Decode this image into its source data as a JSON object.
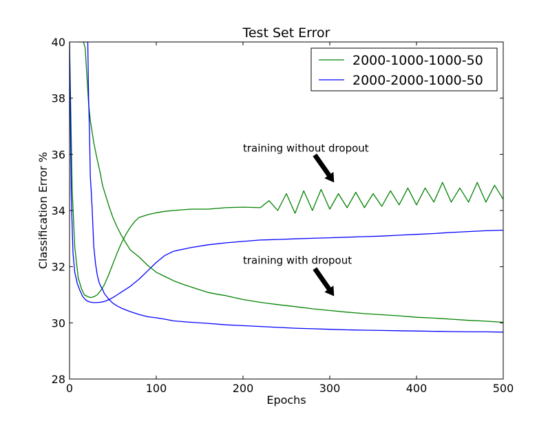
{
  "chart_data": {
    "type": "line",
    "title": "Test Set Error",
    "xlabel": "Epochs",
    "ylabel": "Classification Error %",
    "xlim": [
      0,
      500
    ],
    "ylim": [
      28,
      40
    ],
    "xticks": [
      0,
      100,
      200,
      300,
      400,
      500
    ],
    "yticks": [
      28,
      30,
      32,
      34,
      36,
      38,
      40
    ],
    "grid": false,
    "legend_position": "top-right",
    "series": [
      {
        "name": "2000-1000-1000-50",
        "color": "#008000",
        "role": "without dropout",
        "x": [
          0,
          3,
          6,
          10,
          14,
          17,
          20,
          24,
          28,
          32,
          36,
          40,
          45,
          50,
          55,
          60,
          65,
          70,
          75,
          80,
          90,
          100,
          110,
          120,
          140,
          160,
          180,
          200,
          220,
          230,
          240,
          250,
          260,
          270,
          280,
          290,
          300,
          310,
          320,
          330,
          340,
          350,
          360,
          370,
          380,
          390,
          400,
          410,
          420,
          430,
          440,
          450,
          460,
          470,
          480,
          490,
          500
        ],
        "values": [
          40,
          34.8,
          32.7,
          31.6,
          31.2,
          31.0,
          30.95,
          30.9,
          30.93,
          31.0,
          31.15,
          31.35,
          31.7,
          32.1,
          32.5,
          32.85,
          33.15,
          33.4,
          33.6,
          33.75,
          33.85,
          33.92,
          33.97,
          34.0,
          34.05,
          34.05,
          34.1,
          34.12,
          34.1,
          34.35,
          34.0,
          34.6,
          33.9,
          34.7,
          34.0,
          34.75,
          34.05,
          34.6,
          34.1,
          34.65,
          34.1,
          34.6,
          34.15,
          34.7,
          34.2,
          34.8,
          34.2,
          34.8,
          34.3,
          35.0,
          34.3,
          34.8,
          34.3,
          35.0,
          34.3,
          34.9,
          34.4
        ]
      },
      {
        "name": "2000-2000-1000-50",
        "color": "#0000ff",
        "role": "without dropout",
        "x": [
          0,
          2,
          4,
          6,
          9,
          12,
          15,
          18,
          21,
          24,
          27,
          30,
          35,
          40,
          45,
          50,
          55,
          60,
          70,
          80,
          90,
          100,
          110,
          120,
          140,
          160,
          180,
          200,
          220,
          240,
          260,
          280,
          300,
          320,
          340,
          360,
          380,
          400,
          420,
          440,
          460,
          480,
          500
        ],
        "values": [
          40,
          34.5,
          32.5,
          31.8,
          31.4,
          31.15,
          30.95,
          30.83,
          30.77,
          30.74,
          30.72,
          30.72,
          30.73,
          30.76,
          30.82,
          30.9,
          31.0,
          31.1,
          31.3,
          31.55,
          31.85,
          32.15,
          32.4,
          32.55,
          32.68,
          32.78,
          32.85,
          32.9,
          32.95,
          32.97,
          32.99,
          33.01,
          33.03,
          33.05,
          33.07,
          33.09,
          33.12,
          33.15,
          33.18,
          33.22,
          33.25,
          33.28,
          33.3
        ]
      },
      {
        "name": "2000-1000-1000-50",
        "color": "#008000",
        "role": "with dropout",
        "x": [
          10,
          12,
          14,
          16,
          18,
          20,
          22,
          24,
          26,
          28,
          30,
          32,
          35,
          38,
          42,
          46,
          50,
          55,
          60,
          65,
          70,
          80,
          90,
          100,
          110,
          120,
          130,
          140,
          150,
          160,
          170,
          180,
          190,
          200,
          220,
          240,
          260,
          280,
          300,
          320,
          340,
          360,
          380,
          400,
          420,
          440,
          460,
          480,
          500
        ],
        "values": [
          40,
          40,
          40,
          40,
          39.8,
          38.8,
          37.8,
          37.2,
          36.8,
          36.4,
          36.1,
          35.8,
          35.4,
          34.9,
          34.5,
          34.1,
          33.75,
          33.4,
          33.1,
          32.85,
          32.6,
          32.35,
          32.05,
          31.8,
          31.65,
          31.5,
          31.38,
          31.28,
          31.18,
          31.08,
          31.02,
          30.97,
          30.9,
          30.83,
          30.73,
          30.65,
          30.58,
          30.5,
          30.44,
          30.38,
          30.33,
          30.29,
          30.25,
          30.2,
          30.17,
          30.13,
          30.09,
          30.06,
          30.02
        ]
      },
      {
        "name": "2000-2000-1000-50",
        "color": "#0000ff",
        "role": "with dropout",
        "x": [
          17,
          19,
          21,
          22,
          23,
          24,
          25,
          26,
          27,
          28,
          30,
          32,
          34,
          36,
          38,
          40,
          45,
          50,
          55,
          60,
          70,
          80,
          90,
          100,
          110,
          120,
          140,
          160,
          180,
          200,
          220,
          240,
          260,
          280,
          300,
          320,
          340,
          360,
          380,
          400,
          420,
          440,
          460,
          480,
          500
        ],
        "values": [
          40,
          40,
          40,
          38.0,
          36.8,
          35.2,
          34.7,
          34.1,
          33.4,
          32.7,
          32.1,
          31.7,
          31.45,
          31.3,
          31.2,
          31.05,
          30.85,
          30.7,
          30.6,
          30.52,
          30.4,
          30.3,
          30.22,
          30.18,
          30.13,
          30.07,
          30.02,
          29.98,
          29.93,
          29.9,
          29.87,
          29.84,
          29.81,
          29.79,
          29.77,
          29.75,
          29.74,
          29.73,
          29.72,
          29.71,
          29.7,
          29.69,
          29.68,
          29.68,
          29.67
        ]
      }
    ],
    "annotations": [
      {
        "text": "training without dropout",
        "text_at": [
          200,
          36.1
        ],
        "arrow_to": [
          305,
          35.0
        ]
      },
      {
        "text": "training with dropout",
        "text_at": [
          200,
          32.1
        ],
        "arrow_to": [
          305,
          30.95
        ]
      }
    ]
  }
}
